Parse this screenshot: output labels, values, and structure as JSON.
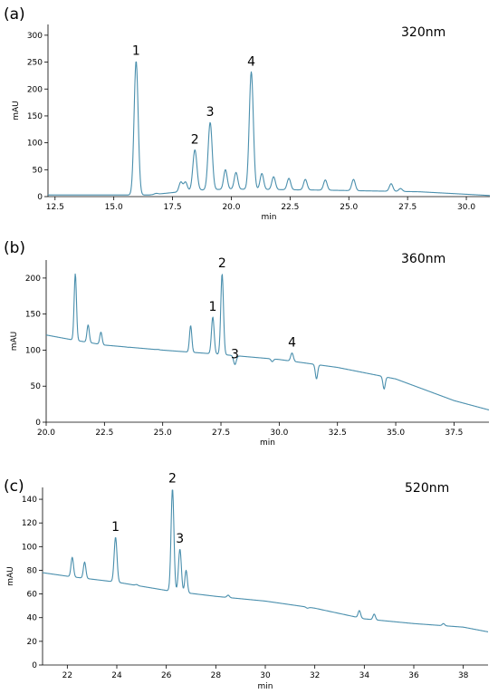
{
  "trace_color": "#4a8fad",
  "chart_data": [
    {
      "type": "line",
      "panel_label": "(a)",
      "wavelength_label": "320nm",
      "xlabel": "min",
      "ylabel": "mAU",
      "xlim": [
        12.2,
        31
      ],
      "ylim": [
        0,
        320
      ],
      "xticks": [
        12.5,
        15.0,
        17.5,
        20.0,
        22.5,
        25.0,
        27.5,
        30.0
      ],
      "xtick_labels": [
        "12.5",
        "15.0",
        "17.5",
        "20.0",
        "22.5",
        "25.0",
        "27.5",
        "30.0"
      ],
      "yticks": [
        0,
        50,
        100,
        150,
        200,
        250,
        300
      ],
      "ytick_labels": [
        "0",
        "50",
        "100",
        "150",
        "200",
        "250",
        "300"
      ],
      "baseline": [
        [
          12.2,
          3
        ],
        [
          15.0,
          3
        ],
        [
          16.5,
          3
        ],
        [
          18.5,
          12
        ],
        [
          20.0,
          14
        ],
        [
          24.0,
          12
        ],
        [
          28.0,
          9
        ],
        [
          31.0,
          2
        ]
      ],
      "peaks": [
        {
          "x": 15.95,
          "y": 252,
          "label": "1"
        },
        {
          "x": 16.8,
          "y": 6
        },
        {
          "x": 17.85,
          "y": 27
        },
        {
          "x": 18.05,
          "y": 27
        },
        {
          "x": 18.45,
          "y": 87,
          "label": "2"
        },
        {
          "x": 19.1,
          "y": 138,
          "label": "3"
        },
        {
          "x": 19.75,
          "y": 50
        },
        {
          "x": 20.2,
          "y": 45
        },
        {
          "x": 20.85,
          "y": 232,
          "label": "4"
        },
        {
          "x": 21.3,
          "y": 43
        },
        {
          "x": 21.8,
          "y": 37
        },
        {
          "x": 22.45,
          "y": 34
        },
        {
          "x": 23.15,
          "y": 32
        },
        {
          "x": 24.0,
          "y": 31
        },
        {
          "x": 25.2,
          "y": 32
        },
        {
          "x": 26.8,
          "y": 24
        },
        {
          "x": 27.2,
          "y": 15
        }
      ]
    },
    {
      "type": "line",
      "panel_label": "(b)",
      "wavelength_label": "360nm",
      "xlabel": "min",
      "ylabel": "mAU",
      "xlim": [
        20.0,
        39.0
      ],
      "ylim": [
        0,
        225
      ],
      "xticks": [
        20.0,
        22.5,
        25.0,
        27.5,
        30.0,
        32.5,
        35.0,
        37.5
      ],
      "xtick_labels": [
        "20.0",
        "22.5",
        "25.0",
        "27.5",
        "30.0",
        "32.5",
        "35.0",
        "37.5"
      ],
      "yticks": [
        0,
        50,
        100,
        150,
        200
      ],
      "ytick_labels": [
        "0",
        "50",
        "100",
        "150",
        "200"
      ],
      "baseline": [
        [
          20.0,
          121
        ],
        [
          21.0,
          115
        ],
        [
          22.5,
          107
        ],
        [
          25.0,
          100
        ],
        [
          27.5,
          94
        ],
        [
          30.0,
          87
        ],
        [
          32.5,
          76
        ],
        [
          35.0,
          60
        ],
        [
          37.5,
          30
        ],
        [
          39.0,
          17
        ]
      ],
      "peaks": [
        {
          "x": 21.25,
          "y": 206
        },
        {
          "x": 21.8,
          "y": 135
        },
        {
          "x": 22.35,
          "y": 125
        },
        {
          "x": 23.5,
          "y": 104
        },
        {
          "x": 24.8,
          "y": 101
        },
        {
          "x": 26.2,
          "y": 134
        },
        {
          "x": 27.15,
          "y": 146,
          "label": "1"
        },
        {
          "x": 27.55,
          "y": 206,
          "label": "2"
        },
        {
          "x": 28.1,
          "y": 80,
          "label": "3"
        },
        {
          "x": 29.7,
          "y": 84
        },
        {
          "x": 30.55,
          "y": 96,
          "label": "4"
        },
        {
          "x": 31.6,
          "y": 60
        },
        {
          "x": 34.5,
          "y": 46
        }
      ]
    },
    {
      "type": "line",
      "panel_label": "(c)",
      "wavelength_label": "520nm",
      "xlabel": "min",
      "ylabel": "mAU",
      "xlim": [
        21.0,
        39.0
      ],
      "ylim": [
        0,
        150
      ],
      "xticks": [
        22,
        24,
        26,
        28,
        30,
        32,
        34,
        36,
        38
      ],
      "xtick_labels": [
        "22",
        "24",
        "26",
        "28",
        "30",
        "32",
        "34",
        "36",
        "38"
      ],
      "yticks": [
        0,
        20,
        40,
        60,
        80,
        100,
        120,
        140
      ],
      "ytick_labels": [
        "0",
        "20",
        "40",
        "60",
        "80",
        "100",
        "120",
        "140"
      ],
      "baseline": [
        [
          21.0,
          78
        ],
        [
          22.0,
          75
        ],
        [
          24.0,
          70
        ],
        [
          26.0,
          63
        ],
        [
          28.0,
          58
        ],
        [
          30.0,
          54
        ],
        [
          32.0,
          48
        ],
        [
          34.0,
          39
        ],
        [
          36.0,
          35
        ],
        [
          38.0,
          32
        ],
        [
          39.0,
          28
        ]
      ],
      "peaks": [
        {
          "x": 22.2,
          "y": 91
        },
        {
          "x": 22.7,
          "y": 87
        },
        {
          "x": 23.95,
          "y": 108,
          "label": "1"
        },
        {
          "x": 24.8,
          "y": 68
        },
        {
          "x": 26.25,
          "y": 149,
          "label": "2"
        },
        {
          "x": 26.55,
          "y": 98,
          "label": "3"
        },
        {
          "x": 26.8,
          "y": 80
        },
        {
          "x": 28.5,
          "y": 59
        },
        {
          "x": 31.7,
          "y": 48
        },
        {
          "x": 33.8,
          "y": 46
        },
        {
          "x": 34.4,
          "y": 43
        },
        {
          "x": 37.2,
          "y": 35
        }
      ]
    }
  ]
}
